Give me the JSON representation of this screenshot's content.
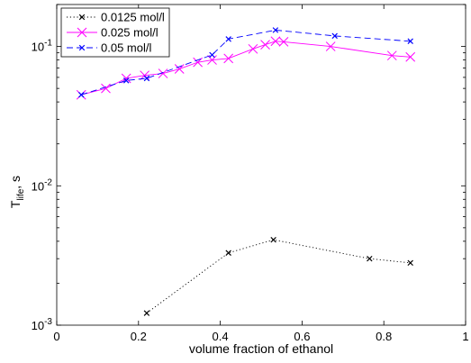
{
  "chart_data": {
    "type": "line",
    "xlabel": "volume fraction of ethanol",
    "ylabel": {
      "base": "T",
      "sub": "life",
      "suffix": ", s"
    },
    "xlim": [
      0,
      1
    ],
    "ylim": [
      0.001,
      0.2
    ],
    "yscale": "log",
    "grid": false,
    "legend_position": "top-left",
    "x_ticks": [
      {
        "value": 0,
        "label": "0"
      },
      {
        "value": 0.2,
        "label": "0.2"
      },
      {
        "value": 0.4,
        "label": "0.4"
      },
      {
        "value": 0.6,
        "label": "0.6"
      },
      {
        "value": 0.8,
        "label": "0.8"
      },
      {
        "value": 1,
        "label": "1"
      }
    ],
    "y_ticks": [
      {
        "value": 0.001,
        "base": "10",
        "exp": "-3"
      },
      {
        "value": 0.01,
        "base": "10",
        "exp": "-2"
      },
      {
        "value": 0.1,
        "base": "10",
        "exp": "-1"
      }
    ],
    "series": [
      {
        "name": "0.0125 mol/l",
        "color": "#000000",
        "line_style": "dotted",
        "marker": "x",
        "x": [
          0.22,
          0.42,
          0.53,
          0.765,
          0.865
        ],
        "y": [
          0.00122,
          0.0033,
          0.0041,
          0.003,
          0.0028
        ]
      },
      {
        "name": "0.025 mol/l",
        "color": "#ff00ff",
        "line_style": "solid",
        "marker": "x",
        "x": [
          0.06,
          0.12,
          0.17,
          0.215,
          0.26,
          0.3,
          0.345,
          0.38,
          0.42,
          0.48,
          0.51,
          0.535,
          0.555,
          0.67,
          0.82,
          0.865
        ],
        "y": [
          0.045,
          0.05,
          0.059,
          0.062,
          0.064,
          0.069,
          0.077,
          0.08,
          0.082,
          0.096,
          0.103,
          0.109,
          0.108,
          0.1,
          0.086,
          0.084
        ]
      },
      {
        "name": "0.05 mol/l",
        "color": "#0000ff",
        "line_style": "dashed",
        "marker": "x",
        "x": [
          0.06,
          0.17,
          0.22,
          0.38,
          0.42,
          0.535,
          0.68,
          0.865
        ],
        "y": [
          0.045,
          0.057,
          0.059,
          0.087,
          0.113,
          0.131,
          0.119,
          0.109
        ]
      }
    ]
  }
}
